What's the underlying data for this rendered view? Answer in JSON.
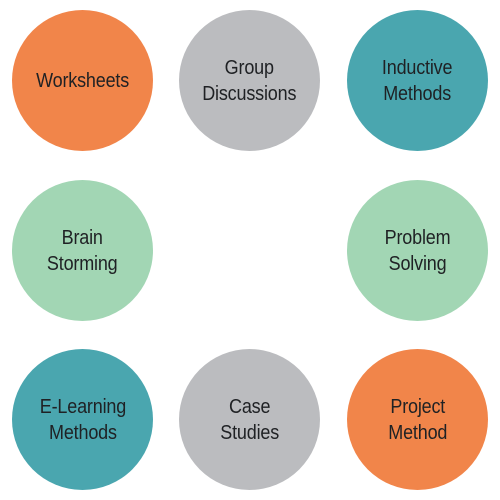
{
  "colors": {
    "orange": "#f1854a",
    "gray": "#bbbcbf",
    "teal": "#4aa6af",
    "mint": "#a2d6b4",
    "text": "#1f2124"
  },
  "methods": [
    {
      "label": "Worksheets",
      "color": "orange"
    },
    {
      "label": "Group\nDiscussions",
      "color": "gray"
    },
    {
      "label": "Inductive\nMethods",
      "color": "teal"
    },
    {
      "label": "Brain\nStorming",
      "color": "mint"
    },
    {
      "label": "Problem\nSolving",
      "color": "mint"
    },
    {
      "label": "E-Learning\nMethods",
      "color": "teal"
    },
    {
      "label": "Case\nStudies",
      "color": "gray"
    },
    {
      "label": "Project\nMethod",
      "color": "orange"
    }
  ]
}
